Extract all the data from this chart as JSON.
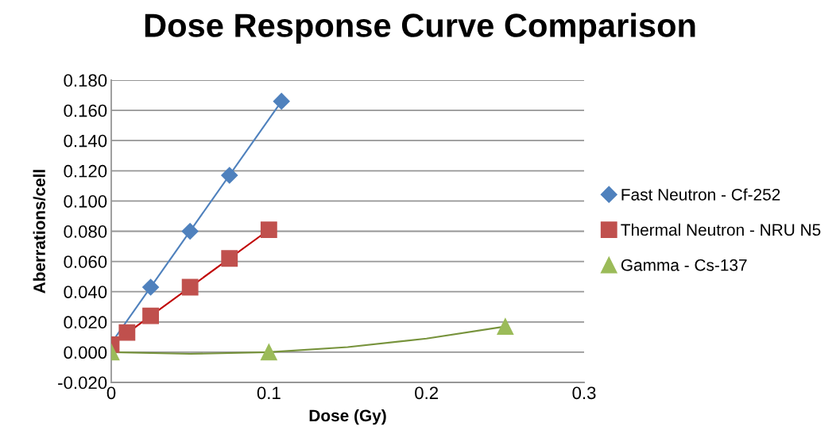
{
  "chart_data": {
    "type": "scatter",
    "title": "Dose Response Curve Comparison",
    "xlabel": "Dose (Gy)",
    "ylabel": "Aberrations/cell",
    "series": [
      {
        "name": "Fast Neutron - Cf-252",
        "color": "#4f81bd",
        "marker": "diamond",
        "x": [
          0.025,
          0.05,
          0.075,
          0.108
        ],
        "values": [
          0.043,
          0.08,
          0.117,
          0.166
        ]
      },
      {
        "name": "Thermal Neutron - NRU N5",
        "color": "#c0504d",
        "marker": "square",
        "x": [
          0,
          0.01,
          0.025,
          0.05,
          0.075,
          0.1
        ],
        "values": [
          0.005,
          0.013,
          0.024,
          0.043,
          0.062,
          0.081
        ]
      },
      {
        "name": "Gamma - Cs-137",
        "color": "#9bbb59",
        "marker": "triangle",
        "x": [
          0,
          0.1,
          0.25
        ],
        "values": [
          0.0,
          0.0,
          0.017
        ]
      },
      {
        "type": "line",
        "color": "#4f81bd",
        "x": [
          0,
          0.108
        ],
        "values": [
          0.006,
          0.166
        ]
      },
      {
        "type": "line",
        "color": "#c00000",
        "x": [
          0,
          0.1
        ],
        "values": [
          0.005,
          0.081
        ]
      },
      {
        "type": "line",
        "color": "#77933c",
        "x": [
          0,
          0.05,
          0.1,
          0.15,
          0.2,
          0.25
        ],
        "values": [
          0,
          -0.0011,
          0,
          0.0034,
          0.009,
          0.017
        ]
      }
    ],
    "xlim": [
      0,
      0.3
    ],
    "xticks": [
      0,
      0.1,
      0.2,
      0.3
    ],
    "ylim": [
      -0.02,
      0.18
    ],
    "yticks": [
      {
        "value": -0.02,
        "label": "-0.020"
      },
      {
        "value": 0,
        "label": "0.000"
      },
      {
        "value": 0.02,
        "label": "0.020"
      },
      {
        "value": 0.04,
        "label": "0.040"
      },
      {
        "value": 0.06,
        "label": "0.060"
      },
      {
        "value": 0.08,
        "label": "0.080"
      },
      {
        "value": 0.1,
        "label": "0.100"
      },
      {
        "value": 0.12,
        "label": "0.120"
      },
      {
        "value": 0.14,
        "label": "0.140"
      },
      {
        "value": 0.16,
        "label": "0.160"
      },
      {
        "value": 0.18,
        "label": "0.180"
      }
    ],
    "grid": "y",
    "legend": "right"
  }
}
